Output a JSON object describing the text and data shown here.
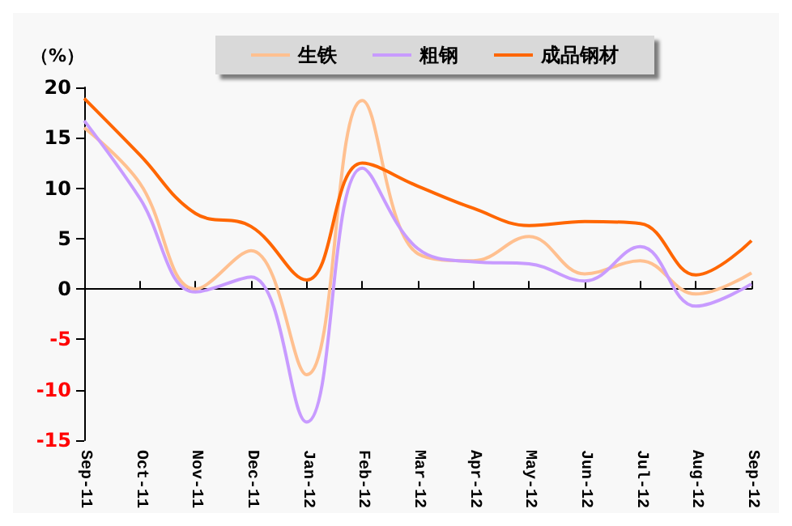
{
  "chart_data": {
    "type": "line",
    "ylabel": "（%）",
    "categories": [
      "Sep-11",
      "Oct-11",
      "Nov-11",
      "Dec-11",
      "Jan-12",
      "Feb-12",
      "Mar-12",
      "Apr-12",
      "May-12",
      "Jun-12",
      "Jul-12",
      "Aug-12",
      "Sep-12"
    ],
    "series": [
      {
        "name": "生铁",
        "color": "#ffc090",
        "values": [
          16,
          10.5,
          0,
          3.8,
          -8.5,
          18.7,
          3.5,
          2.8,
          5.2,
          1.5,
          2.8,
          -0.5,
          1.6
        ]
      },
      {
        "name": "粗钢",
        "color": "#c89bff",
        "values": [
          16.7,
          9,
          -0.3,
          1.2,
          -13.2,
          12,
          4,
          2.7,
          2.5,
          0.8,
          4.2,
          -1.7,
          0.5
        ]
      },
      {
        "name": "成品钢材",
        "color": "#ff6600",
        "values": [
          18.9,
          13.3,
          7.5,
          6.2,
          0.9,
          12.5,
          10.2,
          8,
          6.3,
          6.7,
          6.5,
          1.4,
          4.8
        ]
      }
    ],
    "ylim": [
      -15,
      20
    ],
    "yticks": [
      -15,
      -10,
      -5,
      0,
      5,
      10,
      15,
      20
    ],
    "legend": "top",
    "marker": "none",
    "line_style": "solid"
  }
}
